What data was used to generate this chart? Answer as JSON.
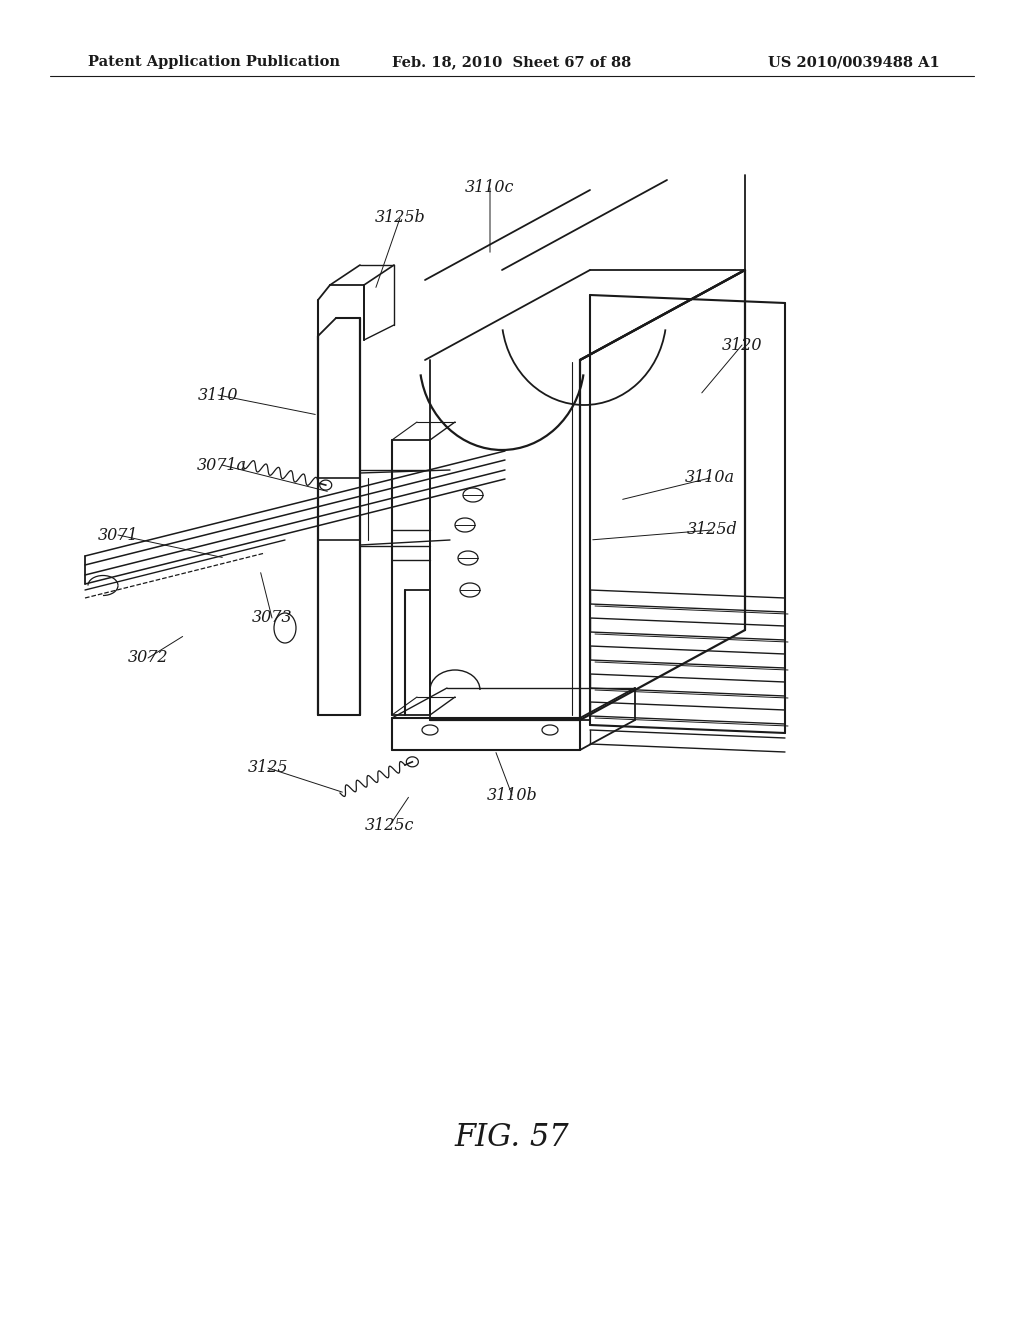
{
  "background_color": "#ffffff",
  "header_left": "Patent Application Publication",
  "header_mid": "Feb. 18, 2010  Sheet 67 of 88",
  "header_right": "US 2010/0039488 A1",
  "figure_caption": "FIG. 57",
  "header_fontsize": 10.5,
  "label_fontsize": 11.5,
  "caption_fontsize": 22
}
